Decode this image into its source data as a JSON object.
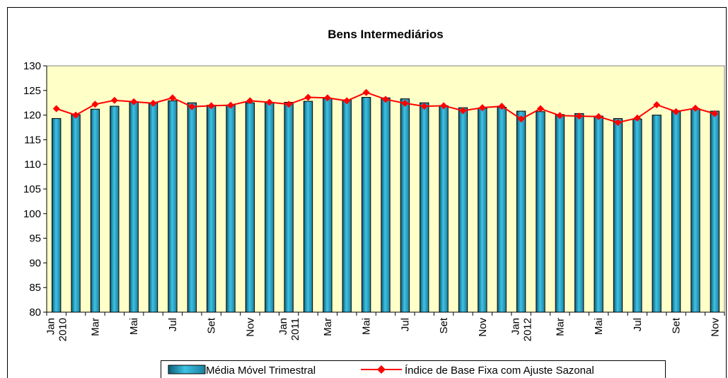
{
  "chart_data": {
    "type": "bar_line",
    "title": "Bens Intermediários",
    "categories": [
      "Jan 2010",
      null,
      "Mar",
      null,
      "Mai",
      null,
      "Jul",
      null,
      "Set",
      null,
      "Nov",
      null,
      "Jan 2011",
      null,
      "Mar",
      null,
      "Mai",
      null,
      "Jul",
      null,
      "Set",
      null,
      "Nov",
      null,
      "Jan 2012",
      null,
      "Mar",
      null,
      "Mai",
      null,
      "Jul",
      null,
      "Set",
      null,
      "Nov"
    ],
    "series": [
      {
        "name": "Média Móvel Trimestral",
        "color": "#2aa6c8",
        "kind": "bar",
        "values": [
          119.3,
          120.1,
          121.2,
          121.8,
          122.7,
          122.5,
          122.9,
          122.5,
          122.0,
          122.0,
          122.5,
          122.6,
          122.6,
          122.8,
          123.4,
          123.1,
          123.6,
          123.5,
          123.3,
          122.5,
          121.9,
          121.5,
          121.4,
          121.6,
          120.8,
          120.7,
          120.1,
          120.3,
          119.8,
          119.3,
          119.2,
          120.0,
          120.9,
          121.3,
          120.8
        ]
      },
      {
        "name": "Índice de Base Fixa com Ajuste Sazonal",
        "color": "#ff0000",
        "kind": "line",
        "values": [
          121.3,
          120.0,
          122.2,
          123.0,
          122.7,
          122.4,
          123.5,
          121.7,
          121.9,
          122.0,
          122.9,
          122.6,
          122.2,
          123.6,
          123.5,
          122.9,
          124.6,
          123.2,
          122.4,
          121.8,
          121.9,
          120.9,
          121.5,
          121.8,
          119.2,
          121.3,
          119.9,
          119.8,
          119.7,
          118.5,
          119.4,
          122.1,
          120.7,
          121.4,
          120.3
        ]
      }
    ],
    "ylim": [
      80,
      130
    ],
    "yticks": [
      80,
      85,
      90,
      95,
      100,
      105,
      110,
      115,
      120,
      125,
      130
    ],
    "grid": false,
    "plot_background": "#ffffc8",
    "legend": "bottom"
  }
}
